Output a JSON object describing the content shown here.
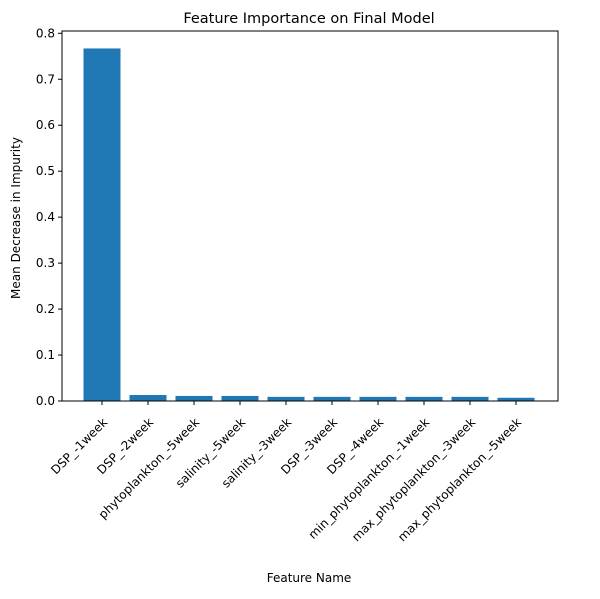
{
  "chart_data": {
    "type": "bar",
    "title": "Feature Importance on Final Model",
    "xlabel": "Feature Name",
    "ylabel": "Mean Decrease in Impurity",
    "categories": [
      "DSP_-1week",
      "DSP_-2week",
      "phytoplankton_-5week",
      "salinity_-5week",
      "salinity_-3week",
      "DSP_-3week",
      "DSP_-4week",
      "min_phytoplankton_-1week",
      "max_phytoplankton_-3week",
      "max_phytoplankton_-5week"
    ],
    "values": [
      0.767,
      0.013,
      0.011,
      0.011,
      0.009,
      0.009,
      0.009,
      0.009,
      0.009,
      0.007
    ],
    "ylim": [
      0,
      0.805
    ],
    "yticks": [
      0.0,
      0.1,
      0.2,
      0.3,
      0.4,
      0.5,
      0.6,
      0.7,
      0.8
    ],
    "ytick_labels": [
      "0.0",
      "0.1",
      "0.2",
      "0.3",
      "0.4",
      "0.5",
      "0.6",
      "0.7",
      "0.8"
    ],
    "grid": false,
    "bar_color": "#1f77b4"
  }
}
